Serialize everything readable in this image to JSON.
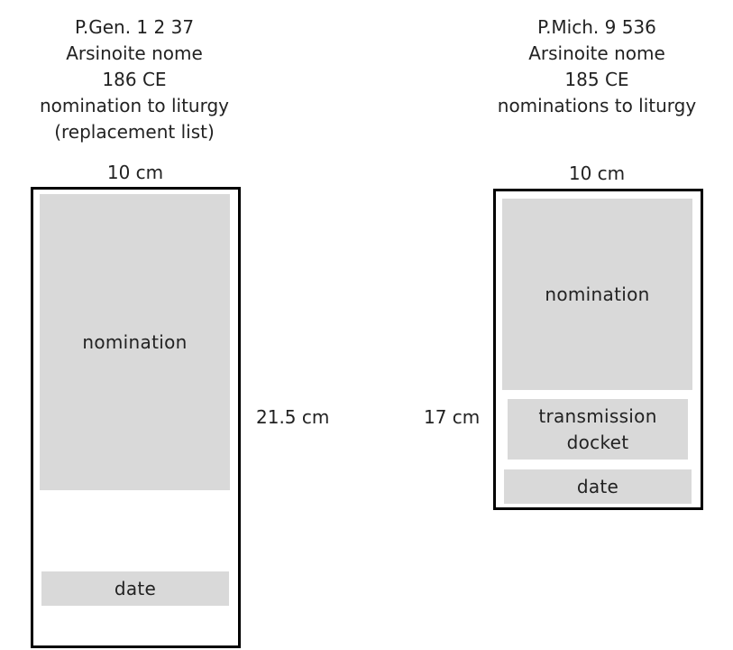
{
  "left_papyrus": {
    "heading": [
      "P.Gen. 1 2 37",
      "Arsinoite nome",
      "186 CE",
      "nomination to liturgy",
      "(replacement list)"
    ],
    "width_label": "10 cm",
    "height_label": "21.5 cm",
    "sections": {
      "nomination": "nomination",
      "date": "date"
    }
  },
  "right_papyrus": {
    "heading": [
      "P.Mich. 9 536",
      "Arsinoite nome",
      "185 CE",
      "nominations to liturgy"
    ],
    "width_label": "10 cm",
    "height_label": "17 cm",
    "sections": {
      "nomination": "nomination",
      "transmission_docket": [
        "transmission",
        "docket"
      ],
      "date": "date"
    }
  },
  "colors": {
    "frame": "#000000",
    "block_fill": "#d9d9d9",
    "text": "#222222"
  }
}
